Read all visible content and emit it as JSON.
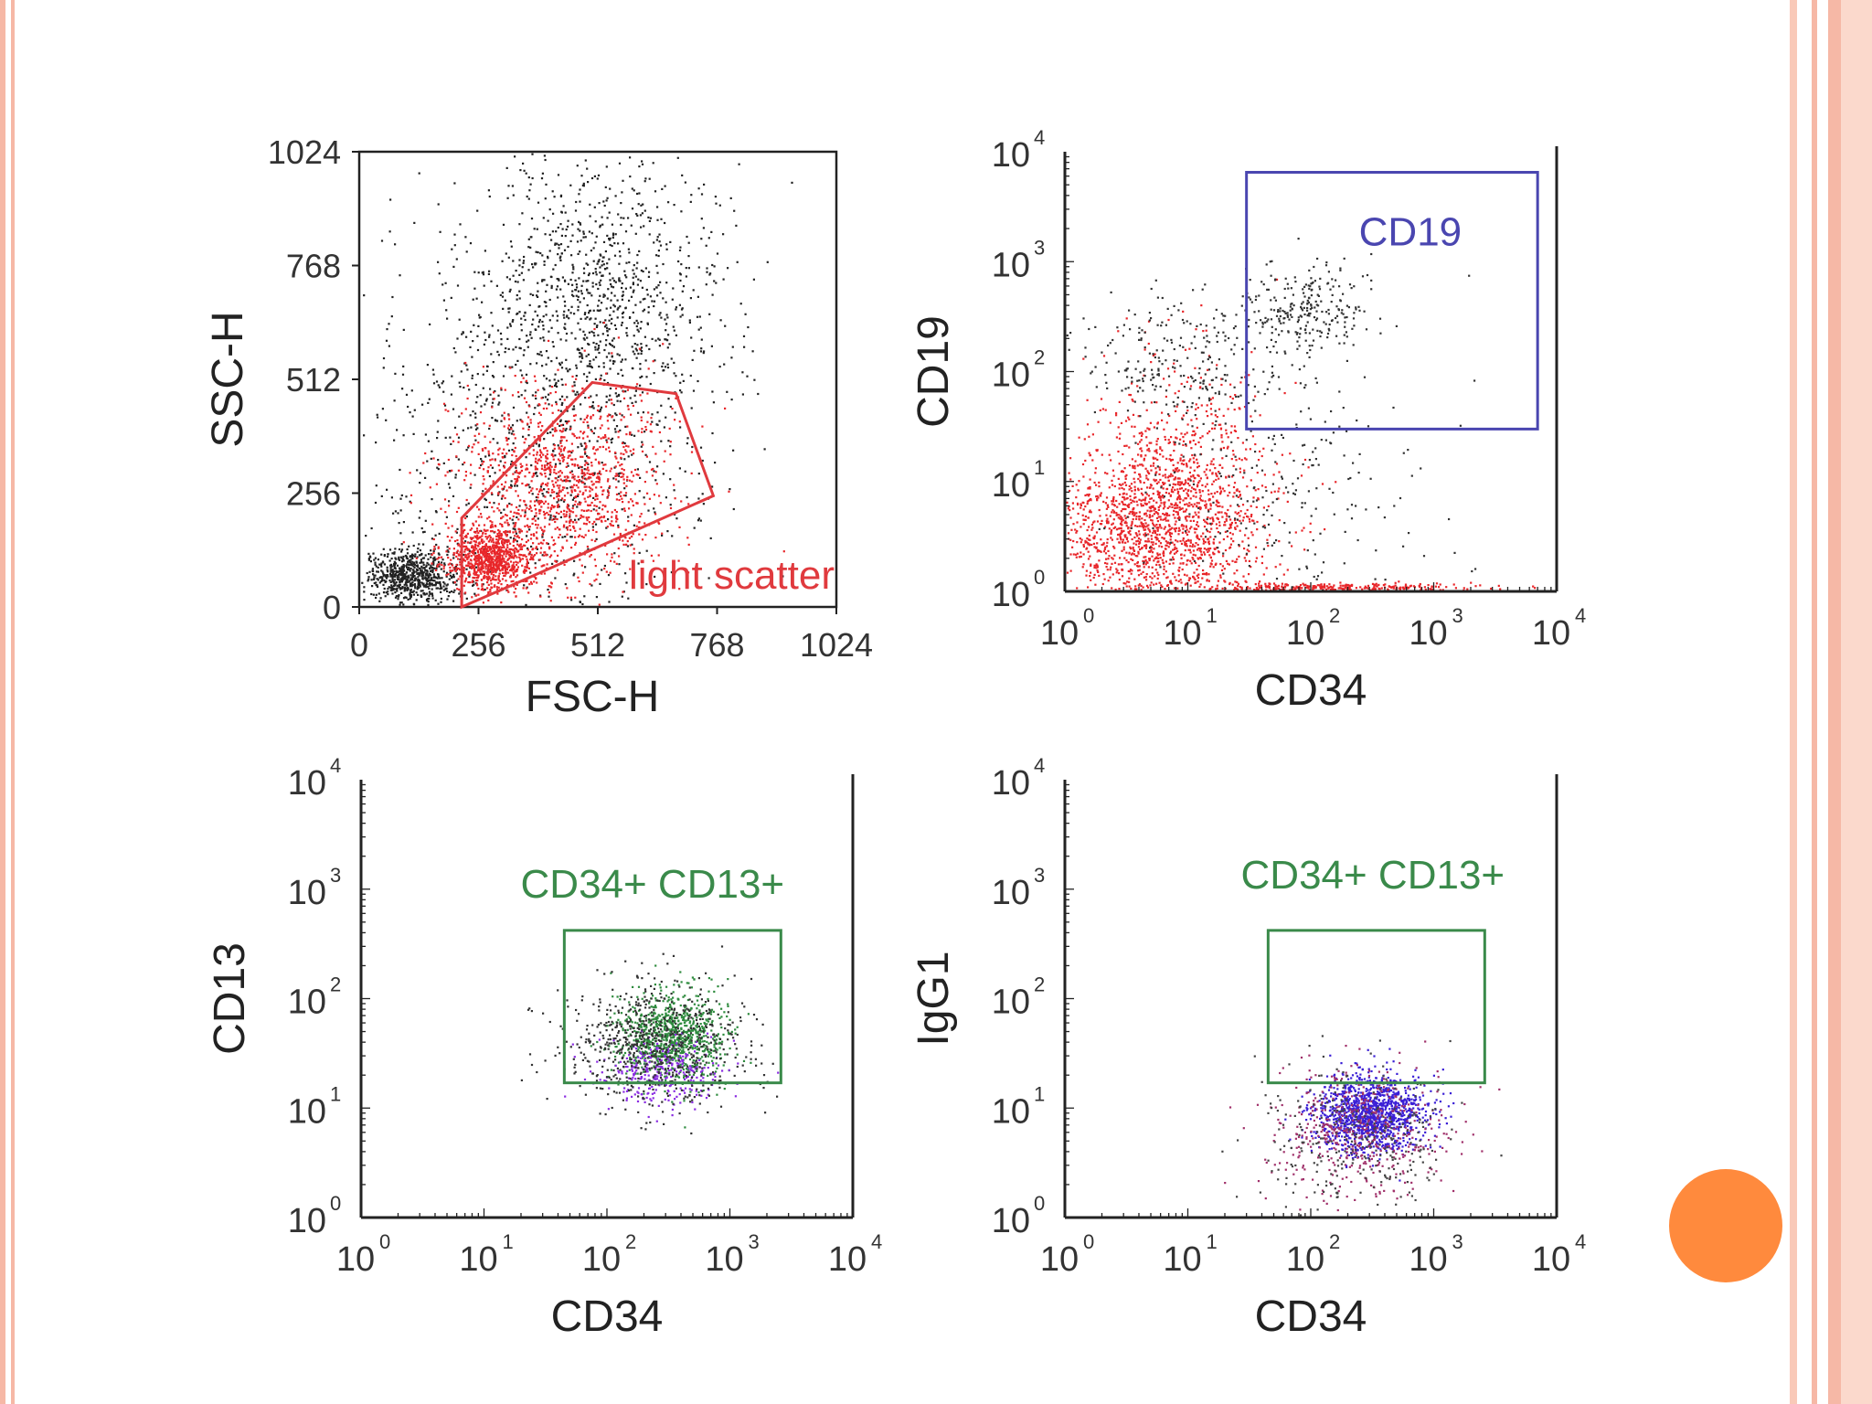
{
  "chart_data": [
    {
      "type": "scatter",
      "title": "",
      "xlabel": "FSC-H",
      "ylabel": "SSC-H",
      "xscale": "linear",
      "yscale": "linear",
      "xlim": [
        0,
        1024
      ],
      "ylim": [
        0,
        1024
      ],
      "xticks": [
        0,
        256,
        512,
        768,
        1024
      ],
      "yticks": [
        0,
        256,
        512,
        768,
        1024
      ],
      "xtick_labels": [
        "0",
        "256",
        "512",
        "768",
        "1024"
      ],
      "ytick_labels": [
        "0",
        "256",
        "512",
        "768",
        "1024"
      ],
      "populations": [
        {
          "color": "#222222",
          "shape": "cloud",
          "center": [
            110,
            70
          ],
          "spread": [
            50,
            30
          ],
          "count": 700
        },
        {
          "color": "#222222",
          "shape": "cloud",
          "center": [
            520,
            720
          ],
          "spread": [
            130,
            160
          ],
          "count": 900
        },
        {
          "color": "#222222",
          "shape": "cloud",
          "center": [
            360,
            360
          ],
          "spread": [
            200,
            230
          ],
          "count": 900
        },
        {
          "color": "#e8262a",
          "shape": "cloud",
          "center": [
            280,
            110
          ],
          "spread": [
            45,
            35
          ],
          "count": 900
        },
        {
          "color": "#e8262a",
          "shape": "cloud",
          "center": [
            430,
            280
          ],
          "spread": [
            110,
            110
          ],
          "count": 1200
        }
      ],
      "gate": {
        "label": "light scatter",
        "color": "#e03a3e",
        "shape": "polygon",
        "points": [
          [
            220,
            0
          ],
          [
            220,
            200
          ],
          [
            500,
            505
          ],
          [
            680,
            480
          ],
          [
            760,
            250
          ],
          [
            330,
            50
          ]
        ]
      },
      "grid": false
    },
    {
      "type": "scatter",
      "title": "",
      "xlabel": "CD34",
      "ylabel": "CD19",
      "xscale": "log",
      "yscale": "log",
      "xlim": [
        1,
        10000
      ],
      "ylim": [
        1,
        10000
      ],
      "xticks": [
        1,
        10,
        100,
        1000,
        10000
      ],
      "yticks": [
        1,
        10,
        100,
        1000,
        10000
      ],
      "tick_base": "10",
      "tick_exponents": [
        "0",
        "1",
        "2",
        "3",
        "4"
      ],
      "populations": [
        {
          "color": "#e8262a",
          "shape": "cloud",
          "center": [
            5,
            3.5
          ],
          "spread": [
            0.45,
            0.4
          ],
          "count": 1600
        },
        {
          "color": "#e8262a",
          "shape": "cloud",
          "center": [
            9,
            20
          ],
          "spread": [
            0.35,
            0.5
          ],
          "count": 400
        },
        {
          "color": "#333333",
          "shape": "cloud",
          "center": [
            8,
            120
          ],
          "spread": [
            0.45,
            0.3
          ],
          "count": 250
        },
        {
          "color": "#333333",
          "shape": "cloud",
          "center": [
            90,
            350
          ],
          "spread": [
            0.25,
            0.22
          ],
          "count": 260
        },
        {
          "color": "#e8262a",
          "shape": "band",
          "center": [
            150,
            1.1
          ],
          "spread": [
            0.55,
            0.02
          ],
          "count": 300
        },
        {
          "color": "#333333",
          "shape": "cloud",
          "center": [
            40,
            8
          ],
          "spread": [
            0.7,
            0.6
          ],
          "count": 250
        }
      ],
      "gate": {
        "label": "CD19",
        "color": "#4a46b0",
        "shape": "rectangle",
        "x_range": [
          30,
          7000
        ],
        "y_range": [
          30,
          6500
        ]
      },
      "grid": false
    },
    {
      "type": "scatter",
      "title": "",
      "xlabel": "CD34",
      "ylabel": "CD13",
      "xscale": "log",
      "yscale": "log",
      "xlim": [
        1,
        10000
      ],
      "ylim": [
        1,
        10000
      ],
      "xticks": [
        1,
        10,
        100,
        1000,
        10000
      ],
      "yticks": [
        1,
        10,
        100,
        1000,
        10000
      ],
      "tick_base": "10",
      "tick_exponents": [
        "0",
        "1",
        "2",
        "3",
        "4"
      ],
      "populations": [
        {
          "color": "#2e8b3e",
          "shape": "cloud",
          "center": [
            330,
            45
          ],
          "spread": [
            0.22,
            0.2
          ],
          "count": 900
        },
        {
          "color": "#8a2be2",
          "shape": "cloud",
          "center": [
            300,
            22
          ],
          "spread": [
            0.25,
            0.15
          ],
          "count": 300
        },
        {
          "color": "#333333",
          "shape": "cloud",
          "center": [
            250,
            40
          ],
          "spread": [
            0.35,
            0.3
          ],
          "count": 700
        }
      ],
      "gate": {
        "label": "CD34+ CD13+",
        "color": "#3a8a4a",
        "shape": "rectangle",
        "x_range": [
          45,
          2600
        ],
        "y_range": [
          17,
          420
        ]
      },
      "grid": false
    },
    {
      "type": "scatter",
      "title": "",
      "xlabel": "CD34",
      "ylabel": "IgG1",
      "xscale": "log",
      "yscale": "log",
      "xlim": [
        1,
        10000
      ],
      "ylim": [
        1,
        10000
      ],
      "xticks": [
        1,
        10,
        100,
        1000,
        10000
      ],
      "yticks": [
        1,
        10,
        100,
        1000,
        10000
      ],
      "tick_base": "10",
      "tick_exponents": [
        "0",
        "1",
        "2",
        "3",
        "4"
      ],
      "populations": [
        {
          "color": "#3a1fd6",
          "shape": "cloud",
          "center": [
            300,
            9
          ],
          "spread": [
            0.22,
            0.18
          ],
          "count": 1300
        },
        {
          "color": "#a0306a",
          "shape": "cloud",
          "center": [
            220,
            6
          ],
          "spread": [
            0.35,
            0.3
          ],
          "count": 500
        },
        {
          "color": "#444444",
          "shape": "cloud",
          "center": [
            200,
            6
          ],
          "spread": [
            0.4,
            0.35
          ],
          "count": 300
        }
      ],
      "gate": {
        "label": "CD34+ CD13+",
        "color": "#3a8a4a",
        "shape": "rectangle",
        "x_range": [
          45,
          2600
        ],
        "y_range": [
          17,
          420
        ]
      },
      "grid": false
    }
  ]
}
